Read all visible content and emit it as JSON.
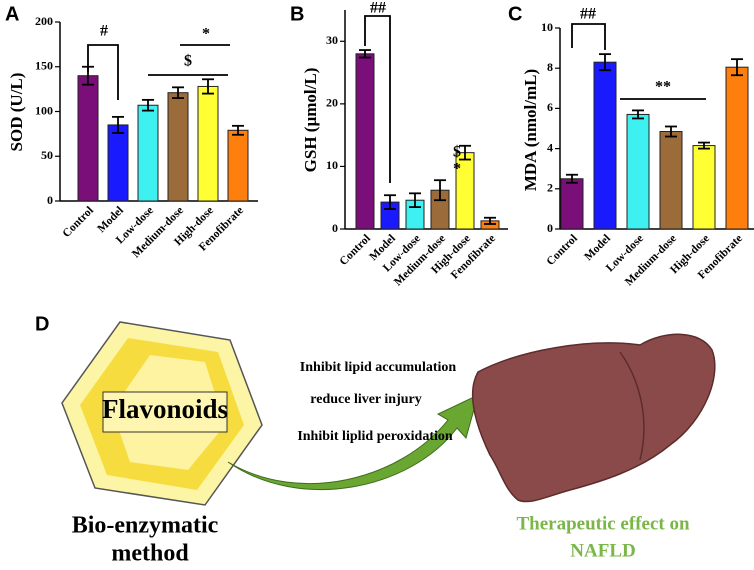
{
  "chart_data": [
    {
      "type": "bar",
      "panel": "A",
      "y_label": "SOD (U/L)",
      "categories": [
        "Control",
        "Model",
        "Low-dose",
        "Medium-dose",
        "High-dose",
        "Fenofibrate"
      ],
      "values": [
        140,
        85,
        107,
        121,
        128,
        79
      ],
      "errors": [
        10,
        9,
        6,
        6,
        8,
        5
      ],
      "colors": [
        "#7a0f7a",
        "#1a1aff",
        "#3ff0f0",
        "#9c6b3a",
        "#ffff33",
        "#ff7f0e"
      ],
      "ylim": [
        0,
        200
      ],
      "yticks": [
        0,
        50,
        100,
        150,
        200
      ],
      "annotations": [
        "#",
        "$",
        "*"
      ]
    },
    {
      "type": "bar",
      "panel": "B",
      "y_label": "GSH (µmol/L)",
      "categories": [
        "Control",
        "Model",
        "Low-dose",
        "Medium-dose",
        "High-dose",
        "Fenofibrate"
      ],
      "values": [
        28,
        4.3,
        4.6,
        6.2,
        12.2,
        1.3
      ],
      "errors": [
        0.6,
        1.1,
        1.1,
        1.6,
        1.1,
        0.5
      ],
      "colors": [
        "#7a0f7a",
        "#1a1aff",
        "#3ff0f0",
        "#9c6b3a",
        "#ffff33",
        "#ff7f0e"
      ],
      "ylim": [
        0,
        35
      ],
      "yticks": [
        0,
        10,
        20,
        30
      ],
      "annotations": [
        "##",
        "$",
        "*"
      ]
    },
    {
      "type": "bar",
      "panel": "C",
      "y_label": "MDA (nmol/mL)",
      "categories": [
        "Control",
        "Model",
        "Low-dose",
        "Medium-dose",
        "High-dose",
        "Fenofibrate"
      ],
      "values": [
        2.5,
        8.3,
        5.7,
        4.85,
        4.15,
        8.05
      ],
      "errors": [
        0.2,
        0.4,
        0.2,
        0.25,
        0.15,
        0.4
      ],
      "colors": [
        "#7a0f7a",
        "#1a1aff",
        "#3ff0f0",
        "#9c6b3a",
        "#ffff33",
        "#ff7f0e"
      ],
      "ylim": [
        0,
        10
      ],
      "yticks": [
        0,
        2,
        4,
        6,
        8,
        10
      ],
      "annotations": [
        "##",
        "**"
      ]
    }
  ],
  "diagram": {
    "panel": "D",
    "compound": "Flavonoids",
    "effects": [
      "Inhibit lipid accumulation",
      "reduce liver injury",
      "Inhibit liplid peroxidation"
    ],
    "method": [
      "Bio-enzymatic",
      "method"
    ],
    "outcome": [
      "Therapeutic effect on",
      "NAFLD"
    ]
  }
}
